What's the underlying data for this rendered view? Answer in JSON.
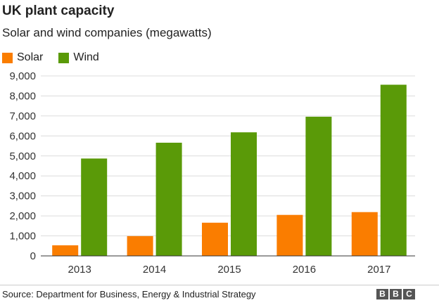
{
  "header": {
    "title": "UK plant capacity",
    "subtitle": "Solar and wind companies (megawatts)"
  },
  "legend": {
    "items": [
      {
        "label": "Solar",
        "color": "#fa7d00"
      },
      {
        "label": "Wind",
        "color": "#5a9a08"
      }
    ]
  },
  "chart_data": {
    "type": "bar",
    "title": "UK plant capacity",
    "subtitle": "Solar and wind companies (megawatts)",
    "categories": [
      "2013",
      "2014",
      "2015",
      "2016",
      "2017"
    ],
    "series": [
      {
        "name": "Solar",
        "color": "#fa7d00",
        "values": [
          530,
          990,
          1660,
          2050,
          2190
        ]
      },
      {
        "name": "Wind",
        "color": "#5a9a08",
        "values": [
          4870,
          5660,
          6180,
          6960,
          8560
        ]
      }
    ],
    "ylim": [
      0,
      9000
    ],
    "yticks": [
      0,
      1000,
      2000,
      3000,
      4000,
      5000,
      6000,
      7000,
      8000,
      9000
    ],
    "ytick_labels": [
      "0",
      "1,000",
      "2,000",
      "3,000",
      "4,000",
      "5,000",
      "6,000",
      "7,000",
      "8,000",
      "9,000"
    ],
    "grid": true,
    "legend_position": "top-left"
  },
  "footer": {
    "source": "Source: Department for Business, Energy & Industrial Strategy",
    "logo_letters": [
      "B",
      "B",
      "C"
    ]
  }
}
